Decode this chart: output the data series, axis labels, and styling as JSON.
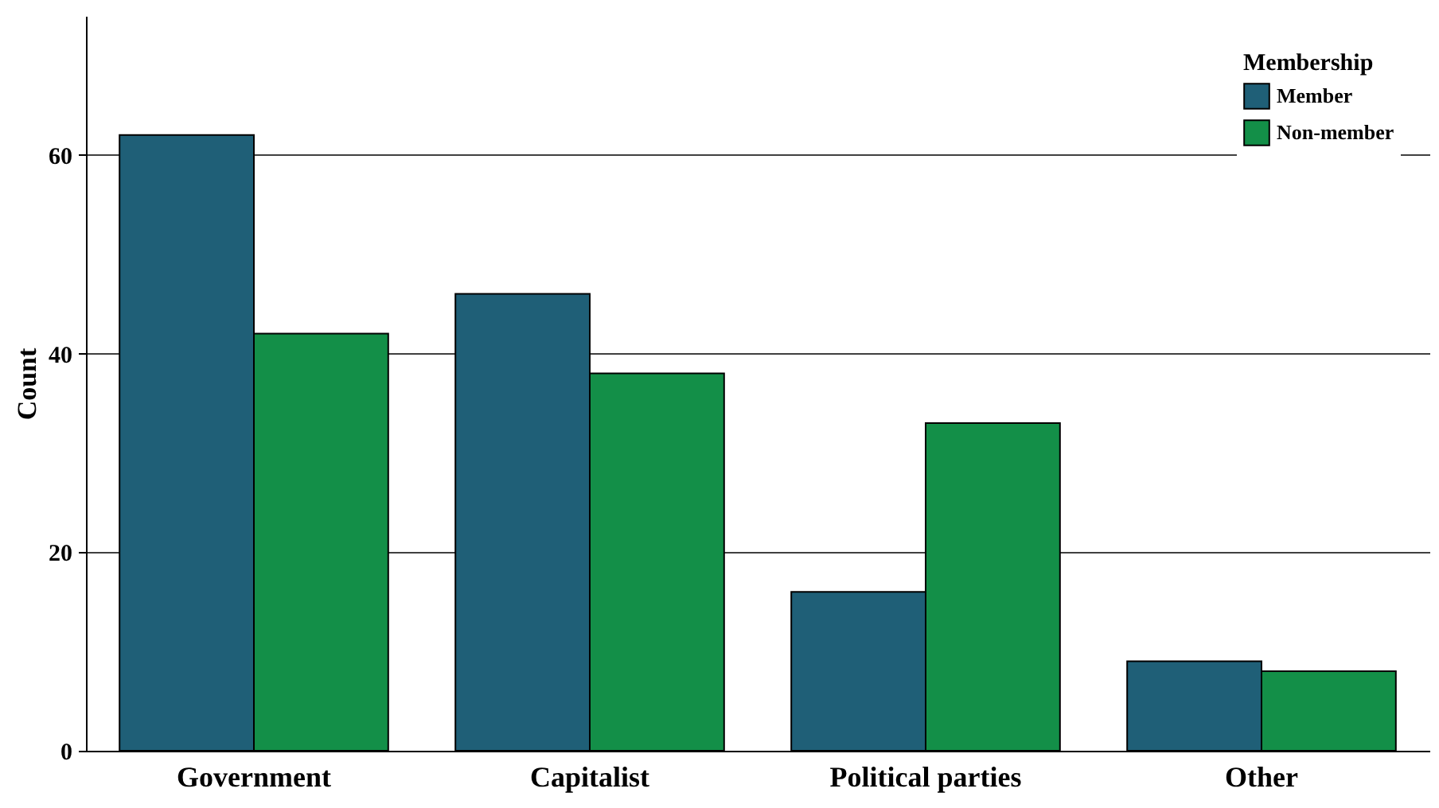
{
  "chart_data": {
    "type": "bar",
    "ylabel": "Count",
    "legend_title": "Membership",
    "legend": "top right",
    "grid": "y",
    "categories": [
      "Government",
      "Capitalist",
      "Political parties",
      "Other"
    ],
    "series": [
      {
        "name": "Member",
        "color": "#1f5f77",
        "values": [
          62,
          46,
          16,
          9
        ]
      },
      {
        "name": "Non-member",
        "color": "#138f48",
        "values": [
          42,
          38,
          33,
          8
        ]
      }
    ],
    "ylim": [
      0,
      74
    ],
    "yticks": [
      0,
      20,
      40,
      60
    ]
  }
}
